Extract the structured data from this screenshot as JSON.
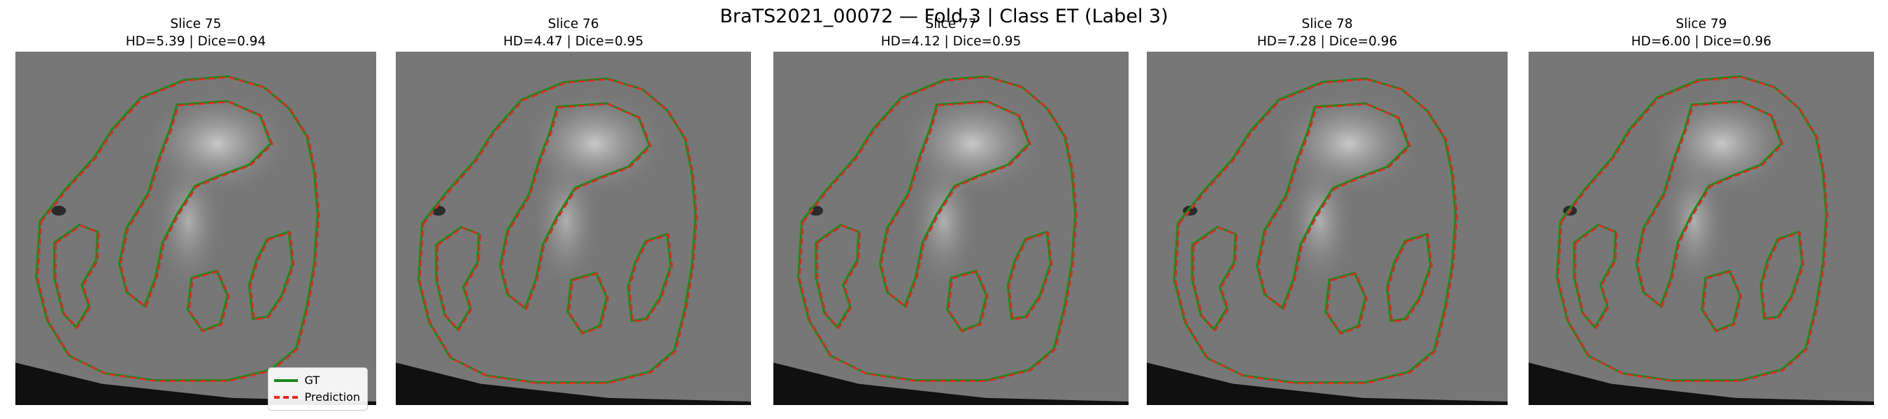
{
  "figure": {
    "title": "BraTS2021_00072 — Fold 3 | Class ET (Label 3)"
  },
  "colors": {
    "gt": "#1a8a1a",
    "prediction": "#e8261e",
    "background": "#777777"
  },
  "panels": [
    {
      "slice_label": "Slice 75",
      "metrics": "HD=5.39 | Dice=0.94"
    },
    {
      "slice_label": "Slice 76",
      "metrics": "HD=4.47 | Dice=0.95"
    },
    {
      "slice_label": "Slice 77",
      "metrics": "HD=4.12 | Dice=0.95"
    },
    {
      "slice_label": "Slice 78",
      "metrics": "HD=7.28 | Dice=0.96"
    },
    {
      "slice_label": "Slice 79",
      "metrics": "HD=6.00 | Dice=0.96"
    }
  ],
  "legend": {
    "gt_label": "GT",
    "prediction_label": "Prediction"
  }
}
